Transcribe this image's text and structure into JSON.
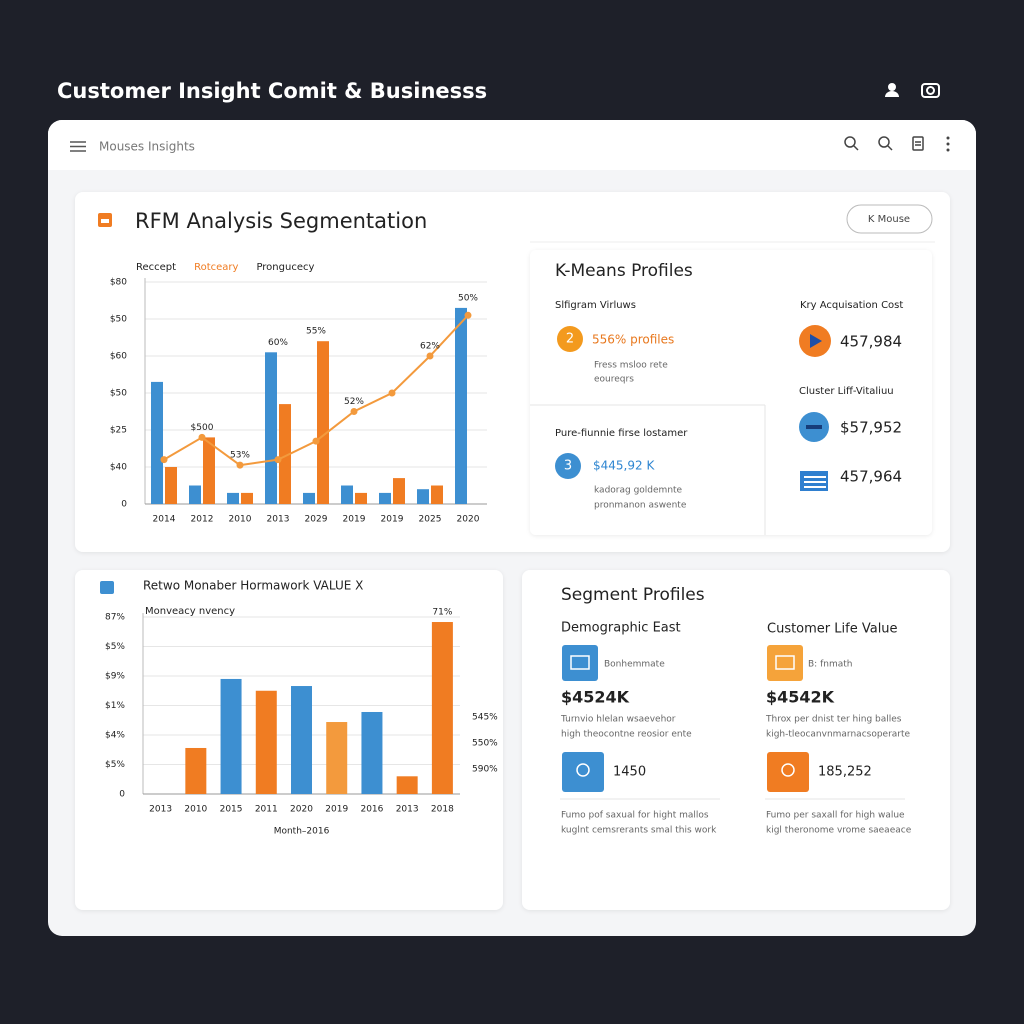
{
  "header": {
    "title": "Customer Insight Comit & Businesss"
  },
  "toolbar": {
    "title": "Mouses Insights"
  },
  "rfm": {
    "title": "RFM Analysis Segmentation",
    "button": "K Mouse"
  },
  "kmeans": {
    "title": "K-Means Profiles",
    "left": [
      {
        "heading": "Slfigram Virluws",
        "badge": "2",
        "value": "556% profiles",
        "note": [
          "Fress msloo rete",
          "eoureqrs"
        ]
      },
      {
        "heading": "Pure-fiunnie firse lostamer",
        "badge": "3",
        "value": "$445,92 K",
        "note": [
          "kadorag goldemnte",
          "pronmanon aswente"
        ]
      }
    ],
    "right": [
      {
        "heading": "Kry Acquisation Cost",
        "value": "457,984"
      },
      {
        "heading": "Cluster Liff-Vitaliuu",
        "value": "$57,952"
      },
      {
        "value": "457,964"
      }
    ]
  },
  "segment": {
    "title": "Segment Profiles",
    "columns": [
      {
        "heading": "Demographic East",
        "tag": "Bonhemmate",
        "value": "$4524K",
        "desc": [
          "Turnvio hlelan wsaevehor",
          "high theocontne reosior ente"
        ],
        "count": "1450",
        "foot": [
          "Fumo pof saxual for hight mallos",
          "kuglnt cemsrerants smal this work"
        ]
      },
      {
        "heading": "Customer Life Value",
        "tag": "B: fnmath",
        "value": "$4542K",
        "desc": [
          "Throx per dnist ter hing balles",
          "kigh-tleocanvnmarnacsoperarte"
        ],
        "count": "185,252",
        "foot": [
          "Fumo per saxall for high walue",
          "kigl theronome vrome saeaeace"
        ]
      }
    ]
  },
  "chart_data": [
    {
      "type": "bar",
      "legend": "top-left",
      "grid": true,
      "categories": [
        "2014",
        "2012",
        "2010",
        "2013",
        "2029",
        "2019",
        "2019",
        "2025",
        "2020"
      ],
      "series": [
        {
          "name": "Reccept",
          "type": "bar",
          "color": "#3d8fd1",
          "values": [
            3.3,
            0.5,
            0.3,
            4.1,
            0.3,
            0.5,
            0.3,
            0.4,
            5.3
          ]
        },
        {
          "name": "Rotceary",
          "type": "bar",
          "color": "#f07c22",
          "values": [
            1.0,
            1.8,
            0.3,
            2.7,
            4.4,
            0.3,
            0.7,
            0.5,
            0
          ]
        },
        {
          "name": "Prongucecy",
          "type": "line",
          "color": "#f39a3d",
          "values": [
            1.2,
            1.8,
            1.05,
            1.2,
            1.7,
            2.5,
            3.0,
            4.0,
            5.1
          ]
        }
      ],
      "ylim": [
        0,
        6
      ],
      "yticks": [
        {
          "value": 0,
          "label": "0"
        },
        {
          "value": 1,
          "label": "$40"
        },
        {
          "value": 2,
          "label": "$25"
        },
        {
          "value": 3,
          "label": "$50"
        },
        {
          "value": 4,
          "label": "$60"
        },
        {
          "value": 5,
          "label": "$50"
        },
        {
          "value": 6,
          "label": "$80"
        }
      ],
      "annotations": [
        {
          "text": "$500",
          "category": "2012"
        },
        {
          "text": "53%",
          "category": "2010"
        },
        {
          "text": "60%",
          "category": "2013"
        },
        {
          "text": "55%",
          "category": "2029"
        },
        {
          "text": "52%",
          "category": "2019"
        },
        {
          "text": "62%",
          "category": "2025"
        },
        {
          "text": "50%",
          "category": "2020"
        }
      ]
    },
    {
      "type": "bar",
      "title": "Retwo Monaber Hormawork VALUE X",
      "legend": "top-left",
      "grid": true,
      "categories": [
        "2013",
        "2010",
        "2015",
        "2011",
        "2020",
        "2019",
        "2016",
        "2013",
        "2018"
      ],
      "x_label": "Month–2016",
      "series": [
        {
          "name": "Monveacy nvency",
          "type": "bar",
          "colors": [
            "#f07c22",
            "#f07c22",
            "#3d8fd1",
            "#f07c22",
            "#3d8fd1",
            "#f39a3d",
            "#3d8fd1",
            "#f07c22",
            "#f07c22"
          ],
          "values": [
            null,
            1.56,
            3.9,
            3.5,
            3.66,
            2.44,
            2.78,
            0.6,
            5.83
          ]
        }
      ],
      "ylim": [
        0,
        6
      ],
      "yticks": [
        {
          "value": 0,
          "label": "0"
        },
        {
          "value": 1,
          "label": "$5%"
        },
        {
          "value": 2,
          "label": "$4%"
        },
        {
          "value": 3,
          "label": "$1%"
        },
        {
          "value": 4,
          "label": "$9%"
        },
        {
          "value": 5,
          "label": "$5%"
        },
        {
          "value": 6,
          "label": "87%"
        }
      ],
      "annotations": [
        {
          "text": "71%",
          "category": "2018"
        }
      ],
      "side_labels": [
        "545%",
        "550%",
        "590%"
      ]
    }
  ]
}
